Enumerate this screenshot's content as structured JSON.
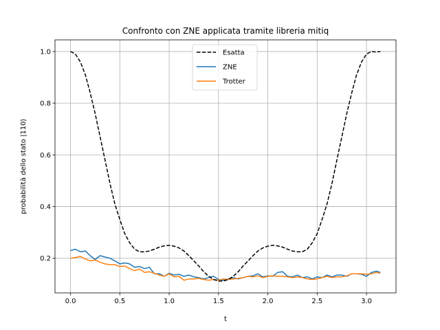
{
  "chart_data": {
    "type": "line",
    "title": "Confronto con ZNE applicata tramite libreria mitiq",
    "xlabel": "t",
    "ylabel": "probabilità dello stato |110⟩",
    "xlim": [
      -0.157,
      3.299
    ],
    "ylim": [
      0.066,
      1.045
    ],
    "xticks": [
      0.0,
      0.5,
      1.0,
      1.5,
      2.0,
      2.5,
      3.0
    ],
    "xtick_labels": [
      "0.0",
      "0.5",
      "1.0",
      "1.5",
      "2.0",
      "2.5",
      "3.0"
    ],
    "yticks": [
      0.2,
      0.4,
      0.6,
      0.8,
      1.0
    ],
    "ytick_labels": [
      "0.2",
      "0.4",
      "0.6",
      "0.8",
      "1.0"
    ],
    "grid": true,
    "legend": "top-center",
    "x": [
      0.0,
      0.05,
      0.1,
      0.15,
      0.2,
      0.25,
      0.3,
      0.35,
      0.4,
      0.45,
      0.5,
      0.55,
      0.6,
      0.65,
      0.7,
      0.75,
      0.8,
      0.85,
      0.9,
      0.95,
      1.0,
      1.05,
      1.1,
      1.15,
      1.2,
      1.25,
      1.3,
      1.35,
      1.4,
      1.45,
      1.5,
      1.55,
      1.6,
      1.65,
      1.7,
      1.75,
      1.8,
      1.85,
      1.9,
      1.95,
      2.0,
      2.05,
      2.1,
      2.15,
      2.2,
      2.25,
      2.3,
      2.35,
      2.4,
      2.45,
      2.5,
      2.55,
      2.6,
      2.65,
      2.7,
      2.75,
      2.8,
      2.85,
      2.9,
      2.95,
      3.0,
      3.05,
      3.1,
      3.14
    ],
    "series": [
      {
        "name": "Esatta",
        "color": "#000000",
        "dashed": true,
        "values": [
          1.0,
          0.99,
          0.96,
          0.91,
          0.84,
          0.76,
          0.67,
          0.58,
          0.49,
          0.41,
          0.35,
          0.295,
          0.26,
          0.235,
          0.225,
          0.225,
          0.228,
          0.235,
          0.243,
          0.248,
          0.25,
          0.247,
          0.24,
          0.228,
          0.21,
          0.19,
          0.17,
          0.148,
          0.13,
          0.118,
          0.112,
          0.112,
          0.118,
          0.13,
          0.148,
          0.17,
          0.19,
          0.21,
          0.228,
          0.24,
          0.247,
          0.25,
          0.248,
          0.243,
          0.235,
          0.228,
          0.225,
          0.225,
          0.235,
          0.26,
          0.295,
          0.35,
          0.41,
          0.49,
          0.58,
          0.67,
          0.76,
          0.84,
          0.91,
          0.96,
          0.99,
          1.0,
          0.998,
          1.0
        ]
      },
      {
        "name": "ZNE",
        "color": "#1f77b4",
        "dashed": false,
        "values": [
          0.23,
          0.235,
          0.225,
          0.228,
          0.21,
          0.195,
          0.21,
          0.205,
          0.2,
          0.19,
          0.178,
          0.182,
          0.178,
          0.165,
          0.168,
          0.16,
          0.165,
          0.14,
          0.14,
          0.13,
          0.142,
          0.135,
          0.138,
          0.13,
          0.135,
          0.128,
          0.125,
          0.12,
          0.125,
          0.13,
          0.118,
          0.115,
          0.12,
          0.125,
          0.12,
          0.125,
          0.13,
          0.132,
          0.14,
          0.128,
          0.132,
          0.13,
          0.145,
          0.148,
          0.13,
          0.128,
          0.135,
          0.125,
          0.128,
          0.12,
          0.128,
          0.125,
          0.135,
          0.128,
          0.135,
          0.135,
          0.13,
          0.14,
          0.14,
          0.138,
          0.13,
          0.145,
          0.15,
          0.145
        ]
      },
      {
        "name": "Trotter",
        "color": "#ff7f0e",
        "dashed": false,
        "values": [
          0.2,
          0.203,
          0.207,
          0.197,
          0.19,
          0.193,
          0.185,
          0.178,
          0.175,
          0.175,
          0.168,
          0.17,
          0.16,
          0.152,
          0.158,
          0.145,
          0.148,
          0.142,
          0.135,
          0.13,
          0.14,
          0.128,
          0.13,
          0.115,
          0.12,
          0.12,
          0.122,
          0.118,
          0.115,
          0.118,
          0.115,
          0.12,
          0.118,
          0.12,
          0.122,
          0.125,
          0.13,
          0.128,
          0.132,
          0.125,
          0.13,
          0.132,
          0.13,
          0.13,
          0.128,
          0.125,
          0.128,
          0.125,
          0.12,
          0.118,
          0.12,
          0.125,
          0.13,
          0.125,
          0.128,
          0.128,
          0.132,
          0.14,
          0.14,
          0.14,
          0.138,
          0.14,
          0.145,
          0.142
        ]
      }
    ]
  }
}
